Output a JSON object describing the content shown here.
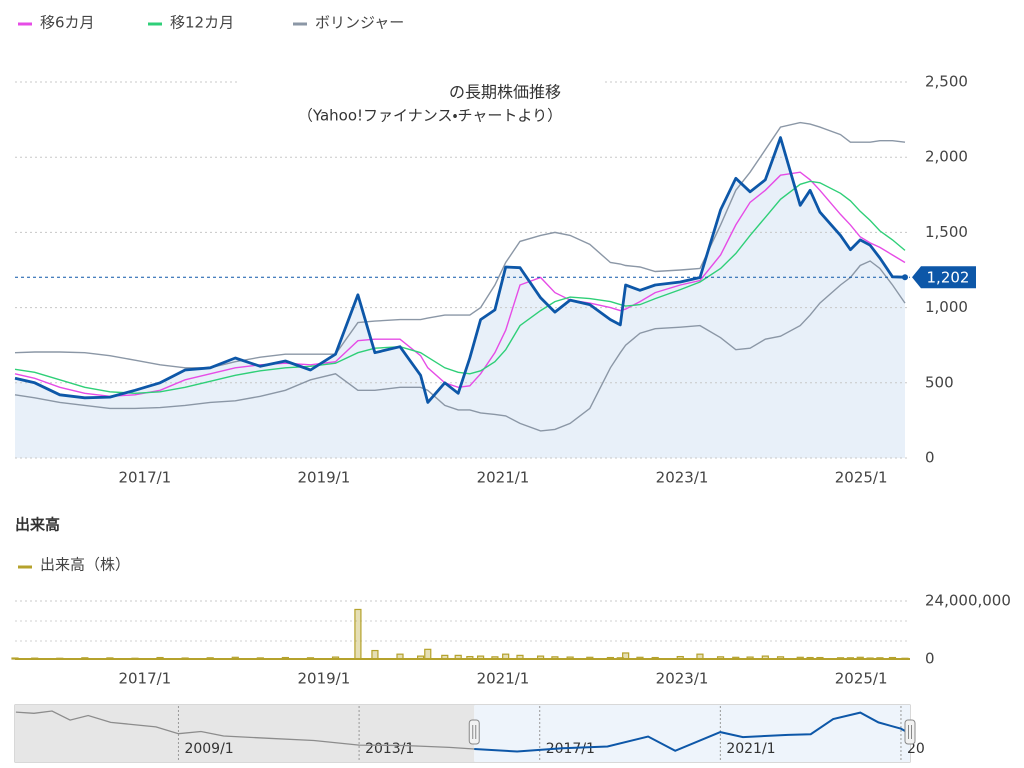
{
  "legend": [
    "移6カ月",
    "移12カ月",
    "ボリンジャー"
  ],
  "chart_data": [
    {
      "type": "line",
      "title": "の長期株価推移",
      "subtitle": "（Yahoo!ファイナンス・チャートより）",
      "x": [
        2015.55,
        2015.77,
        2016.05,
        2016.33,
        2016.61,
        2016.89,
        2017.17,
        2017.45,
        2017.73,
        2018.01,
        2018.29,
        2018.57,
        2018.85,
        2019.13,
        2019.38,
        2019.57,
        2019.85,
        2020.08,
        2020.16,
        2020.35,
        2020.5,
        2020.63,
        2020.75,
        2020.91,
        2021.03,
        2021.19,
        2021.42,
        2021.58,
        2021.75,
        2021.97,
        2022.2,
        2022.31,
        2022.37,
        2022.53,
        2022.7,
        2022.98,
        2023.2,
        2023.43,
        2023.6,
        2023.76,
        2023.93,
        2024.1,
        2024.32,
        2024.43,
        2024.54,
        2024.77,
        2024.88,
        2024.99,
        2025.1,
        2025.21,
        2025.35,
        2025.49
      ],
      "price": {
        "color": "#0d57a8",
        "fill": "#e8f0f9",
        "values": [
          530,
          500,
          420,
          400,
          405,
          450,
          500,
          585,
          600,
          665,
          610,
          645,
          585,
          690,
          1085,
          700,
          740,
          550,
          370,
          500,
          430,
          665,
          920,
          985,
          1270,
          1265,
          1065,
          970,
          1050,
          1020,
          920,
          885,
          1150,
          1115,
          1150,
          1170,
          1200,
          1650,
          1860,
          1770,
          1850,
          2130,
          1680,
          1780,
          1635,
          1480,
          1385,
          1450,
          1415,
          1330,
          1205,
          1202
        ]
      },
      "series": [
        {
          "name": "移6カ月",
          "color": "#e64ce6",
          "values": [
            560,
            530,
            470,
            430,
            410,
            420,
            450,
            520,
            560,
            600,
            620,
            630,
            620,
            640,
            780,
            790,
            790,
            680,
            600,
            500,
            470,
            480,
            560,
            700,
            850,
            1150,
            1200,
            1100,
            1050,
            1030,
            1000,
            980,
            990,
            1040,
            1100,
            1150,
            1180,
            1350,
            1550,
            1700,
            1780,
            1880,
            1900,
            1850,
            1780,
            1620,
            1550,
            1470,
            1430,
            1400,
            1350,
            1300
          ]
        },
        {
          "name": "移12カ月",
          "color": "#2fcf78",
          "values": [
            590,
            570,
            520,
            470,
            440,
            430,
            440,
            470,
            510,
            550,
            580,
            600,
            610,
            630,
            700,
            730,
            740,
            700,
            670,
            600,
            570,
            560,
            580,
            640,
            720,
            880,
            980,
            1040,
            1070,
            1060,
            1040,
            1020,
            1010,
            1020,
            1060,
            1120,
            1170,
            1260,
            1360,
            1480,
            1600,
            1720,
            1820,
            1840,
            1830,
            1760,
            1710,
            1640,
            1580,
            1510,
            1450,
            1380
          ]
        },
        {
          "name": "ボリンジャー",
          "color": "#8b97a6",
          "upper": [
            700,
            705,
            705,
            700,
            680,
            650,
            620,
            600,
            600,
            640,
            670,
            690,
            690,
            690,
            900,
            910,
            920,
            920,
            930,
            950,
            950,
            950,
            1000,
            1150,
            1300,
            1440,
            1480,
            1500,
            1480,
            1420,
            1300,
            1290,
            1280,
            1270,
            1240,
            1250,
            1260,
            1550,
            1780,
            1900,
            2050,
            2200,
            2230,
            2220,
            2200,
            2150,
            2100,
            2100,
            2100,
            2110,
            2110,
            2100
          ],
          "lower": [
            420,
            400,
            370,
            350,
            330,
            330,
            335,
            350,
            370,
            380,
            410,
            450,
            520,
            560,
            450,
            450,
            470,
            470,
            450,
            350,
            320,
            320,
            300,
            290,
            280,
            230,
            180,
            190,
            230,
            330,
            600,
            700,
            750,
            830,
            860,
            870,
            880,
            800,
            720,
            730,
            790,
            810,
            880,
            950,
            1030,
            1150,
            1200,
            1280,
            1310,
            1260,
            1150,
            1030
          ]
        }
      ],
      "last_price": {
        "value": 1202,
        "label": "1,202"
      },
      "xlim": [
        2015.55,
        2025.49
      ],
      "xticks": [
        {
          "value": 2017,
          "label": "2017/1"
        },
        {
          "value": 2019,
          "label": "2019/1"
        },
        {
          "value": 2021,
          "label": "2021/1"
        },
        {
          "value": 2023,
          "label": "2023/1"
        },
        {
          "value": 2025,
          "label": "2025/1"
        }
      ],
      "ylim": [
        0,
        2500
      ],
      "yticks": [
        0,
        500,
        {
          "value": 1000,
          "label": "1,000"
        },
        {
          "value": 1500,
          "label": "1,500"
        },
        {
          "value": 2000,
          "label": "2,000"
        },
        {
          "value": 2500,
          "label": "2,500"
        }
      ],
      "grid": true
    },
    {
      "type": "bar",
      "title": "出来高",
      "series": [
        {
          "name": "出来高（株）",
          "color": "#b5a22c",
          "values": [
            400000,
            350000,
            300000,
            500000,
            450000,
            300000,
            600000,
            400000,
            500000,
            700000,
            450000,
            600000,
            500000,
            800000,
            20500000,
            3500000,
            2000000,
            1200000,
            4000000,
            1500000,
            1500000,
            1000000,
            1200000,
            900000,
            2000000,
            1500000,
            1200000,
            900000,
            800000,
            700000,
            600000,
            500000,
            2500000,
            700000,
            600000,
            1000000,
            2000000,
            900000,
            700000,
            800000,
            1200000,
            900000,
            700000,
            600000,
            600000,
            500000,
            500000,
            700000,
            400000,
            500000,
            600000,
            300000
          ]
        }
      ],
      "x": [
        2015.55,
        2015.77,
        2016.05,
        2016.33,
        2016.61,
        2016.89,
        2017.17,
        2017.45,
        2017.73,
        2018.01,
        2018.29,
        2018.57,
        2018.85,
        2019.13,
        2019.38,
        2019.57,
        2019.85,
        2020.08,
        2020.16,
        2020.35,
        2020.5,
        2020.63,
        2020.75,
        2020.91,
        2021.03,
        2021.19,
        2021.42,
        2021.58,
        2021.75,
        2021.97,
        2022.2,
        2022.31,
        2022.37,
        2022.53,
        2022.7,
        2022.98,
        2023.2,
        2023.43,
        2023.6,
        2023.76,
        2023.93,
        2024.1,
        2024.32,
        2024.43,
        2024.54,
        2024.77,
        2024.88,
        2024.99,
        2025.1,
        2025.21,
        2025.35,
        2025.49
      ],
      "xlim": [
        2015.55,
        2025.49
      ],
      "xticks": [
        {
          "value": 2017,
          "label": "2017/1"
        },
        {
          "value": 2019,
          "label": "2019/1"
        },
        {
          "value": 2021,
          "label": "2021/1"
        },
        {
          "value": 2023,
          "label": "2023/1"
        },
        {
          "value": 2025,
          "label": "2025/1"
        }
      ],
      "ylim": [
        0,
        24000000
      ],
      "yticks": [
        0,
        {
          "value": 24000000,
          "label": "24,000,000"
        }
      ],
      "grid": true
    },
    {
      "type": "line",
      "x": [
        2005.4,
        2005.8,
        2006.2,
        2006.6,
        2007.0,
        2007.5,
        2008.0,
        2008.5,
        2009.0,
        2009.5,
        2010.0,
        2011.0,
        2012.0,
        2013.0,
        2014.0,
        2015.0,
        2015.55,
        2016.5,
        2017.5,
        2018.5,
        2019.4,
        2020.0,
        2021.0,
        2021.5,
        2022.5,
        2023.0,
        2023.5,
        2024.1,
        2024.5,
        2025.0,
        2025.2
      ],
      "series": [
        {
          "color": "#8c8c8c",
          "values": [
            2150,
            2100,
            2200,
            1800,
            2000,
            1700,
            1600,
            1500,
            1200,
            1300,
            1100,
            1000,
            900,
            700,
            680,
            600,
            530,
            null,
            null,
            null,
            null,
            null,
            null,
            null,
            null,
            null,
            null,
            null,
            null,
            null,
            null
          ]
        },
        {
          "color": "#0d57a8",
          "values": [
            null,
            null,
            null,
            null,
            null,
            null,
            null,
            null,
            null,
            null,
            null,
            null,
            null,
            null,
            null,
            null,
            530,
            420,
            560,
            640,
            1080,
            450,
            1270,
            1050,
            1150,
            1180,
            1850,
            2130,
            1700,
            1420,
            1202
          ]
        }
      ],
      "xlim": [
        2005.38,
        2025.2
      ],
      "xticks": [
        {
          "value": 2009,
          "label": "2009/1"
        },
        {
          "value": 2013,
          "label": "2013/1"
        },
        {
          "value": 2017,
          "label": "2017/1"
        },
        {
          "value": 2021,
          "label": "2021/1"
        },
        {
          "value": 2025,
          "label": "20"
        }
      ],
      "ylim": [
        0,
        2420
      ]
    }
  ]
}
